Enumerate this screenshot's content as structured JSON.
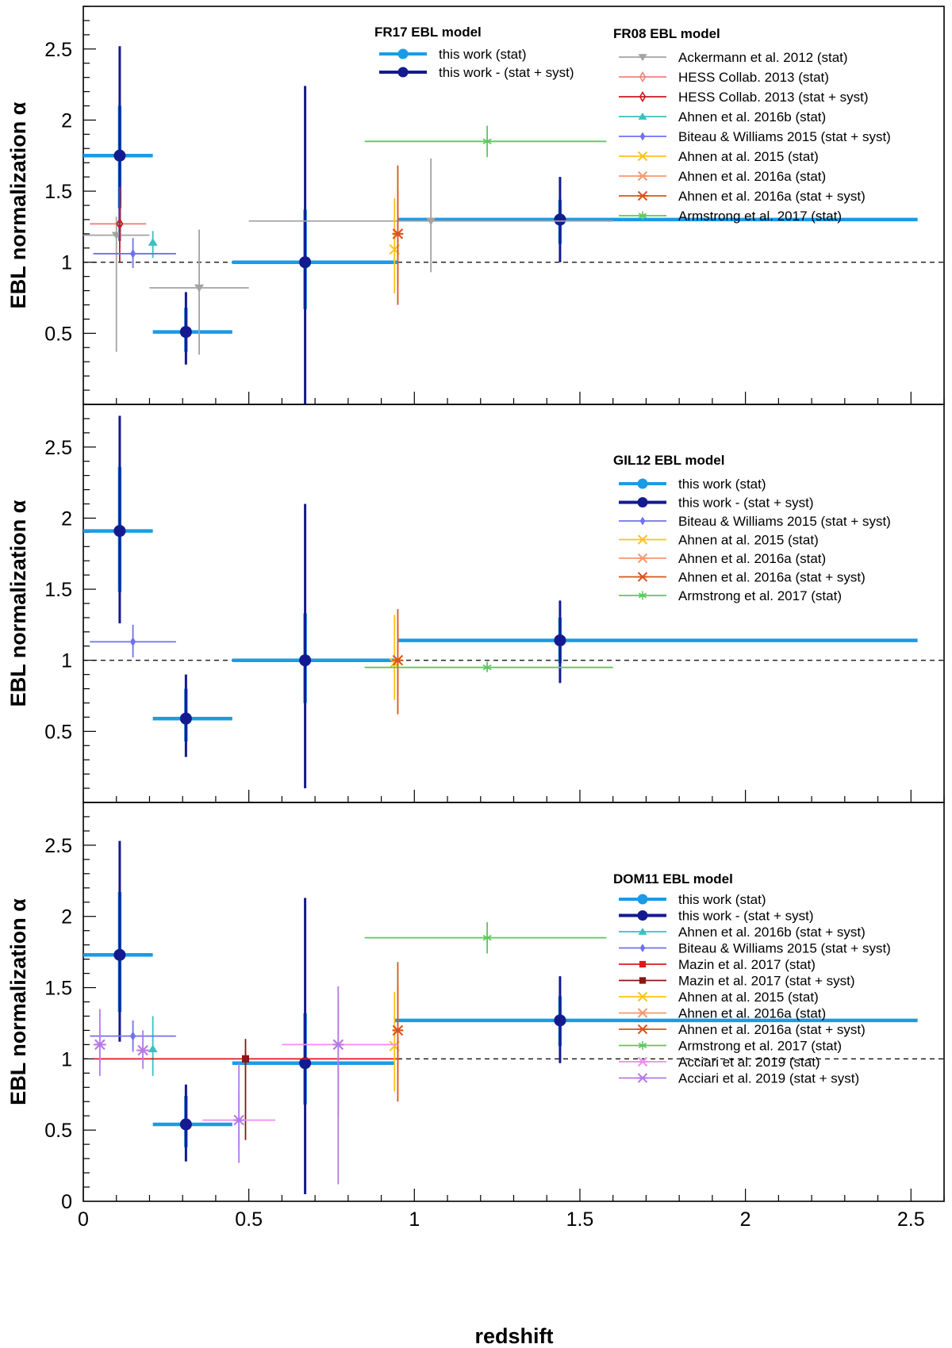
{
  "figure": {
    "xlabel": "redshift",
    "ylabel": "EBL normalization α",
    "xticks": [
      "0",
      "0.5",
      "1",
      "1.5",
      "2",
      "2.5"
    ],
    "yticks": [
      "0.5",
      "1",
      "1.5",
      "2",
      "2.5"
    ],
    "y0_label": "0"
  },
  "styles": {
    "this_stat": {
      "color": "#1a9be6",
      "marker": "circle"
    },
    "this_syst": {
      "color": "#141a8f",
      "marker": "circle"
    },
    "ackermann": {
      "color": "#a3a3a3",
      "marker": "tri-down"
    },
    "hess_stat": {
      "color": "#f08080",
      "marker": "diamond-open"
    },
    "hess_syst": {
      "color": "#c8191e",
      "marker": "diamond-open"
    },
    "ahnen16b": {
      "color": "#3cbfbf",
      "marker": "tri-up"
    },
    "biteau": {
      "color": "#7070f0",
      "marker": "diamond"
    },
    "ahnen15": {
      "color": "#ffc21a",
      "marker": "x"
    },
    "ahnen16a_stat": {
      "color": "#f59a6e",
      "marker": "asterisk"
    },
    "ahnen16a_syst": {
      "color": "#d9541e",
      "marker": "asterisk"
    },
    "armstrong": {
      "color": "#5cc85c",
      "marker": "star"
    },
    "mazin_stat": {
      "color": "#e01818",
      "marker": "square"
    },
    "mazin_syst": {
      "color": "#8c1414",
      "marker": "square"
    },
    "acciari_stat": {
      "color": "#f08cf0",
      "marker": "asterisk"
    },
    "acciari_syst": {
      "color": "#b47ae6",
      "marker": "asterisk"
    }
  },
  "chart_data": [
    {
      "type": "scatter",
      "title": "FR17 EBL model",
      "xlabel": "redshift",
      "ylabel": "EBL normalization α",
      "xlim": [
        0,
        2.6
      ],
      "ylim": [
        0,
        2.8
      ],
      "reference_line": 1,
      "legend_title": "FR17 EBL model",
      "legend_title_2": "FR08 EBL model",
      "series": [
        {
          "style": "this_stat",
          "name": "this work  (stat)",
          "legend_group": 1,
          "points": [
            {
              "x": 0.11,
              "y": 1.75,
              "xlo": 0.0,
              "xhi": 0.21,
              "ylo": 1.38,
              "yhi": 2.1
            },
            {
              "x": 0.31,
              "y": 0.51,
              "xlo": 0.21,
              "xhi": 0.45,
              "ylo": 0.37,
              "yhi": 0.68
            },
            {
              "x": 0.67,
              "y": 1.0,
              "xlo": 0.45,
              "xhi": 0.95,
              "ylo": 0.67,
              "yhi": 1.37
            },
            {
              "x": 1.44,
              "y": 1.3,
              "xlo": 0.95,
              "xhi": 2.52,
              "ylo": 1.13,
              "yhi": 1.44
            }
          ]
        },
        {
          "style": "this_syst",
          "name": "this work - (stat + syst)",
          "legend_group": 1,
          "points": [
            {
              "x": 0.11,
              "y": 1.75,
              "ylo": 1.15,
              "yhi": 2.52
            },
            {
              "x": 0.31,
              "y": 0.51,
              "ylo": 0.28,
              "yhi": 0.79
            },
            {
              "x": 0.67,
              "y": 1.0,
              "ylo": 0.0,
              "yhi": 2.24
            },
            {
              "x": 1.44,
              "y": 1.3,
              "ylo": 1.0,
              "yhi": 1.6
            }
          ]
        },
        {
          "style": "ackermann",
          "name": "Ackermann et al. 2012 (stat)",
          "legend_group": 2,
          "points": [
            {
              "x": 0.1,
              "y": 1.19,
              "xlo": 0.0,
              "xhi": 0.2,
              "ylo": 0.37,
              "yhi": 1.32
            },
            {
              "x": 0.35,
              "y": 0.82,
              "xlo": 0.2,
              "xhi": 0.5,
              "ylo": 0.35,
              "yhi": 1.23
            },
            {
              "x": 1.05,
              "y": 1.29,
              "xlo": 0.5,
              "xhi": 1.6,
              "ylo": 0.93,
              "yhi": 1.73
            }
          ]
        },
        {
          "style": "hess_stat",
          "name": "HESS Collab. 2013 (stat)",
          "legend_group": 2,
          "points": [
            {
              "x": 0.11,
              "y": 1.27,
              "xlo": 0.02,
              "xhi": 0.19,
              "ylo": 1.1,
              "yhi": 1.42
            }
          ]
        },
        {
          "style": "hess_syst",
          "name": "HESS Collab. 2013 (stat + syst)",
          "legend_group": 2,
          "points": [
            {
              "x": 0.11,
              "y": 1.27,
              "ylo": 1.0,
              "yhi": 1.53
            }
          ]
        },
        {
          "style": "ahnen16b",
          "name": "Ahnen et al. 2016b (stat)",
          "legend_group": 2,
          "points": [
            {
              "x": 0.21,
              "y": 1.14,
              "ylo": 1.03,
              "yhi": 1.22
            }
          ]
        },
        {
          "style": "biteau",
          "name": "Biteau & Williams 2015 (stat + syst)",
          "legend_group": 2,
          "points": [
            {
              "x": 0.15,
              "y": 1.06,
              "xlo": 0.03,
              "xhi": 0.28,
              "ylo": 0.96,
              "yhi": 1.17
            }
          ]
        },
        {
          "style": "ahnen15",
          "name": "Ahnen at al. 2015 (stat)",
          "legend_group": 2,
          "points": [
            {
              "x": 0.94,
              "y": 1.09,
              "ylo": 0.78,
              "yhi": 1.45
            }
          ]
        },
        {
          "style": "ahnen16a_stat",
          "name": "Ahnen et al. 2016a (stat)",
          "legend_group": 2,
          "points": [
            {
              "x": 0.95,
              "y": 1.2,
              "ylo": 0.85,
              "yhi": 1.52
            }
          ]
        },
        {
          "style": "ahnen16a_syst",
          "name": "Ahnen et al. 2016a (stat + syst)",
          "legend_group": 2,
          "points": [
            {
              "x": 0.95,
              "y": 1.2,
              "ylo": 0.7,
              "yhi": 1.68
            }
          ]
        },
        {
          "style": "armstrong",
          "name": "Armstrong et al. 2017 (stat)",
          "legend_group": 2,
          "points": [
            {
              "x": 1.22,
              "y": 1.85,
              "xlo": 0.85,
              "xhi": 1.58,
              "ylo": 1.74,
              "yhi": 1.96
            }
          ]
        }
      ]
    },
    {
      "type": "scatter",
      "title": "GIL12 EBL model",
      "xlabel": "redshift",
      "ylabel": "EBL normalization α",
      "xlim": [
        0,
        2.6
      ],
      "ylim": [
        0,
        2.8
      ],
      "reference_line": 1,
      "legend_title": "GIL12 EBL model",
      "series": [
        {
          "style": "this_stat",
          "name": "this work  (stat)",
          "legend_group": 1,
          "points": [
            {
              "x": 0.11,
              "y": 1.91,
              "xlo": 0.0,
              "xhi": 0.21,
              "ylo": 1.48,
              "yhi": 2.36
            },
            {
              "x": 0.31,
              "y": 0.59,
              "xlo": 0.21,
              "xhi": 0.45,
              "ylo": 0.43,
              "yhi": 0.8
            },
            {
              "x": 0.67,
              "y": 1.0,
              "xlo": 0.45,
              "xhi": 0.95,
              "ylo": 0.7,
              "yhi": 1.33
            },
            {
              "x": 1.44,
              "y": 1.14,
              "xlo": 0.95,
              "xhi": 2.52,
              "ylo": 0.98,
              "yhi": 1.3
            }
          ]
        },
        {
          "style": "this_syst",
          "name": "this work - (stat + syst)",
          "legend_group": 1,
          "points": [
            {
              "x": 0.11,
              "y": 1.91,
              "ylo": 1.26,
              "yhi": 2.72
            },
            {
              "x": 0.31,
              "y": 0.59,
              "ylo": 0.32,
              "yhi": 0.9
            },
            {
              "x": 0.67,
              "y": 1.0,
              "ylo": 0.1,
              "yhi": 2.1
            },
            {
              "x": 1.44,
              "y": 1.14,
              "ylo": 0.84,
              "yhi": 1.42
            }
          ]
        },
        {
          "style": "biteau",
          "name": "Biteau & Williams 2015 (stat + syst)",
          "legend_group": 2,
          "points": [
            {
              "x": 0.15,
              "y": 1.13,
              "xlo": 0.02,
              "xhi": 0.28,
              "ylo": 1.02,
              "yhi": 1.25
            }
          ]
        },
        {
          "style": "ahnen15",
          "name": "Ahnen at al. 2015 (stat)",
          "legend_group": 2,
          "points": [
            {
              "x": 0.94,
              "y": 0.98,
              "ylo": 0.72,
              "yhi": 1.32
            }
          ]
        },
        {
          "style": "ahnen16a_stat",
          "name": "Ahnen et al. 2016a (stat)",
          "legend_group": 2,
          "points": [
            {
              "x": 0.95,
              "y": 1.0,
              "ylo": 0.75,
              "yhi": 1.25
            }
          ]
        },
        {
          "style": "ahnen16a_syst",
          "name": "Ahnen et al. 2016a (stat + syst)",
          "legend_group": 2,
          "points": [
            {
              "x": 0.95,
              "y": 1.0,
              "ylo": 0.62,
              "yhi": 1.36
            }
          ]
        },
        {
          "style": "armstrong",
          "name": "Armstrong et al. 2017 (stat)",
          "legend_group": 2,
          "points": [
            {
              "x": 1.22,
              "y": 0.95,
              "xlo": 0.85,
              "xhi": 1.6,
              "ylo": 0.92,
              "yhi": 0.99
            }
          ]
        }
      ]
    },
    {
      "type": "scatter",
      "title": "DOM11 EBL model",
      "xlabel": "redshift",
      "ylabel": "EBL normalization α",
      "xlim": [
        0,
        2.6
      ],
      "ylim": [
        0,
        2.8
      ],
      "reference_line": 1,
      "legend_title": "DOM11 EBL model",
      "series": [
        {
          "style": "this_stat",
          "name": "this work  (stat)",
          "legend_group": 1,
          "points": [
            {
              "x": 0.11,
              "y": 1.73,
              "xlo": 0.0,
              "xhi": 0.21,
              "ylo": 1.33,
              "yhi": 2.17
            },
            {
              "x": 0.31,
              "y": 0.54,
              "xlo": 0.21,
              "xhi": 0.45,
              "ylo": 0.38,
              "yhi": 0.74
            },
            {
              "x": 0.67,
              "y": 0.97,
              "xlo": 0.45,
              "xhi": 0.94,
              "ylo": 0.68,
              "yhi": 1.32
            },
            {
              "x": 1.44,
              "y": 1.27,
              "xlo": 0.94,
              "xhi": 2.52,
              "ylo": 1.09,
              "yhi": 1.44
            }
          ]
        },
        {
          "style": "this_syst",
          "name": "this work - (stat + syst)",
          "legend_group": 1,
          "points": [
            {
              "x": 0.11,
              "y": 1.73,
              "ylo": 1.12,
              "yhi": 2.53
            },
            {
              "x": 0.31,
              "y": 0.54,
              "ylo": 0.28,
              "yhi": 0.82
            },
            {
              "x": 0.67,
              "y": 0.97,
              "ylo": 0.05,
              "yhi": 2.13
            },
            {
              "x": 1.44,
              "y": 1.27,
              "ylo": 0.97,
              "yhi": 1.58
            }
          ]
        },
        {
          "style": "ahnen16b",
          "name": "Ahnen et al. 2016b (stat + syst)",
          "legend_group": 2,
          "points": [
            {
              "x": 0.21,
              "y": 1.07,
              "ylo": 0.88,
              "yhi": 1.3
            }
          ]
        },
        {
          "style": "biteau",
          "name": "Biteau & Williams 2015 (stat + syst)",
          "legend_group": 2,
          "points": [
            {
              "x": 0.15,
              "y": 1.16,
              "xlo": 0.02,
              "xhi": 0.28,
              "ylo": 1.05,
              "yhi": 1.27
            }
          ]
        },
        {
          "style": "mazin_stat",
          "name": "Mazin et al. 2017 (stat)",
          "legend_group": 2,
          "points": [
            {
              "x": 0.49,
              "y": 1.0,
              "xlo": 0.03,
              "xhi": 0.95,
              "ylo": 0.95,
              "yhi": 1.05
            }
          ]
        },
        {
          "style": "mazin_syst",
          "name": "Mazin et al. 2017 (stat + syst)",
          "legend_group": 2,
          "points": [
            {
              "x": 0.49,
              "y": 1.0,
              "ylo": 0.43,
              "yhi": 1.14
            }
          ]
        },
        {
          "style": "ahnen15",
          "name": "Ahnen at al. 2015 (stat)",
          "legend_group": 2,
          "points": [
            {
              "x": 0.94,
              "y": 1.09,
              "ylo": 0.77,
              "yhi": 1.47
            }
          ]
        },
        {
          "style": "ahnen16a_stat",
          "name": "Ahnen et al. 2016a (stat)",
          "legend_group": 2,
          "points": [
            {
              "x": 0.95,
              "y": 1.2,
              "ylo": 0.86,
              "yhi": 1.52
            }
          ]
        },
        {
          "style": "ahnen16a_syst",
          "name": "Ahnen et al. 2016a (stat + syst)",
          "legend_group": 2,
          "points": [
            {
              "x": 0.95,
              "y": 1.2,
              "ylo": 0.7,
              "yhi": 1.68
            }
          ]
        },
        {
          "style": "armstrong",
          "name": "Armstrong et al. 2017 (stat)",
          "legend_group": 2,
          "points": [
            {
              "x": 1.22,
              "y": 1.85,
              "xlo": 0.85,
              "xhi": 1.58,
              "ylo": 1.74,
              "yhi": 1.96
            }
          ]
        },
        {
          "style": "acciari_stat",
          "name": "Acciari et al. 2019 (stat)",
          "legend_group": 2,
          "points": [
            {
              "x": 0.05,
              "y": 1.1,
              "xlo": 0.03,
              "xhi": 0.07,
              "ylo": 0.98,
              "yhi": 1.22
            },
            {
              "x": 0.18,
              "y": 1.06,
              "xlo": 0.16,
              "xhi": 0.2,
              "ylo": 1.0,
              "yhi": 1.12
            },
            {
              "x": 0.47,
              "y": 0.57,
              "xlo": 0.36,
              "xhi": 0.58,
              "ylo": 0.38,
              "yhi": 0.76
            },
            {
              "x": 0.77,
              "y": 1.1,
              "xlo": 0.6,
              "xhi": 0.95,
              "ylo": 0.6,
              "yhi": 1.42
            }
          ]
        },
        {
          "style": "acciari_syst",
          "name": "Acciari et al. 2019 (stat + syst)",
          "legend_group": 2,
          "points": [
            {
              "x": 0.05,
              "y": 1.1,
              "ylo": 0.88,
              "yhi": 1.35
            },
            {
              "x": 0.18,
              "y": 1.06,
              "ylo": 0.93,
              "yhi": 1.2
            },
            {
              "x": 0.47,
              "y": 0.57,
              "ylo": 0.27,
              "yhi": 0.97
            },
            {
              "x": 0.77,
              "y": 1.1,
              "ylo": 0.12,
              "yhi": 1.51
            }
          ]
        }
      ]
    }
  ]
}
